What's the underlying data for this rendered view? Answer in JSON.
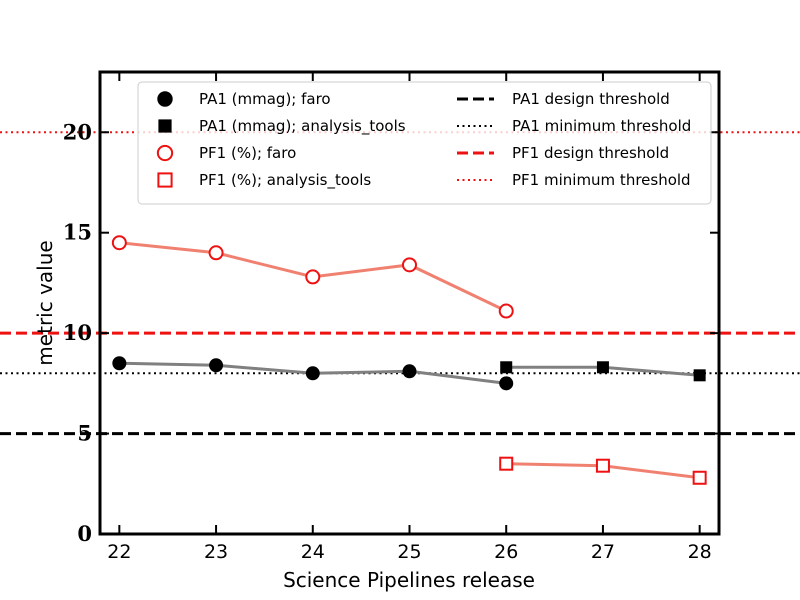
{
  "chart_data": {
    "type": "line",
    "title": "",
    "xlabel": "Science Pipelines release",
    "ylabel": "metric value",
    "x": [
      22,
      23,
      24,
      25,
      26,
      27,
      28
    ],
    "xlim": [
      21.8,
      28.2
    ],
    "ylim": [
      0,
      23
    ],
    "yticks": [
      0,
      5,
      10,
      15,
      20
    ],
    "grid": false,
    "legend_position": "top",
    "series": [
      {
        "name": "PA1 (mmag); faro",
        "marker": "filled-circle",
        "color": "#000000",
        "line_color": "#808080",
        "points": [
          [
            22,
            8.5
          ],
          [
            23,
            8.4
          ],
          [
            24,
            8.0
          ],
          [
            25,
            8.1
          ],
          [
            26,
            7.5
          ]
        ]
      },
      {
        "name": "PA1 (mmag); analysis_tools",
        "marker": "filled-square",
        "color": "#000000",
        "line_color": "#808080",
        "points": [
          [
            26,
            8.3
          ],
          [
            27,
            8.3
          ],
          [
            28,
            7.9
          ]
        ]
      },
      {
        "name": "PF1 (%); faro",
        "marker": "open-circle",
        "color": "#ee1111",
        "line_color": "#f08070",
        "points": [
          [
            22,
            14.5
          ],
          [
            23,
            14.0
          ],
          [
            24,
            12.8
          ],
          [
            25,
            13.4
          ],
          [
            26,
            11.1
          ]
        ]
      },
      {
        "name": "PF1 (%); analysis_tools",
        "marker": "open-square",
        "color": "#ee1111",
        "line_color": "#f08070",
        "points": [
          [
            26,
            3.5
          ],
          [
            27,
            3.4
          ],
          [
            28,
            2.8
          ]
        ]
      }
    ],
    "thresholds": [
      {
        "name": "PA1 design threshold",
        "value": 5,
        "color": "#000000",
        "style": "dashed"
      },
      {
        "name": "PA1 minimum threshold",
        "value": 8,
        "color": "#000000",
        "style": "dotted"
      },
      {
        "name": "PF1 design threshold",
        "value": 10,
        "color": "#ee1111",
        "style": "dashed"
      },
      {
        "name": "PF1 minimum threshold",
        "value": 20,
        "color": "#ee1111",
        "style": "dotted"
      }
    ]
  }
}
